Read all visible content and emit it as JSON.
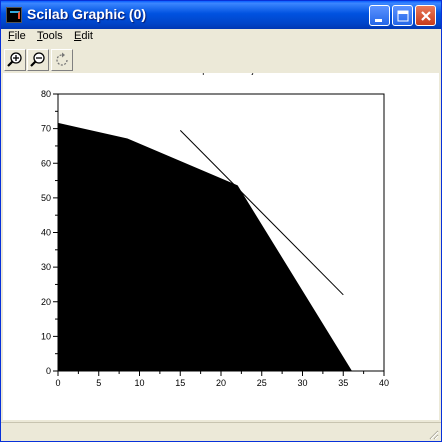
{
  "window": {
    "title": "Scilab Graphic (0)"
  },
  "menu": {
    "items": [
      {
        "label": "File",
        "mnemonic": "F",
        "rest": "ile"
      },
      {
        "label": "Tools",
        "mnemonic": "T",
        "rest": "ools"
      },
      {
        "label": "Edit",
        "mnemonic": "E",
        "rest": "dit"
      }
    ]
  },
  "toolbar": {
    "buttons": [
      {
        "name": "zoom-in",
        "icon": "zoom-in-icon"
      },
      {
        "name": "zoom-out",
        "icon": "zoom-out-icon"
      },
      {
        "name": "rotate",
        "icon": "rotate-icon"
      }
    ]
  },
  "chart_data": {
    "type": "area",
    "title": "Solution space and objective",
    "xlabel": "",
    "ylabel": "",
    "xlim": [
      0,
      40
    ],
    "ylim": [
      0,
      80
    ],
    "xticks": [
      "0",
      "5",
      "10",
      "15",
      "20",
      "25",
      "30",
      "35",
      "40"
    ],
    "yticks": [
      "0",
      "10",
      "20",
      "30",
      "40",
      "50",
      "60",
      "70",
      "80"
    ],
    "grid": false,
    "series": [
      {
        "kind": "filled-polygon",
        "color": "#000000",
        "points": [
          [
            0,
            0
          ],
          [
            0,
            71.5
          ],
          [
            8.5,
            67
          ],
          [
            22,
            53.5
          ],
          [
            36,
            0
          ]
        ]
      },
      {
        "kind": "line",
        "color": "#000000",
        "points": [
          [
            15,
            69.5
          ],
          [
            35,
            22
          ]
        ]
      }
    ]
  }
}
